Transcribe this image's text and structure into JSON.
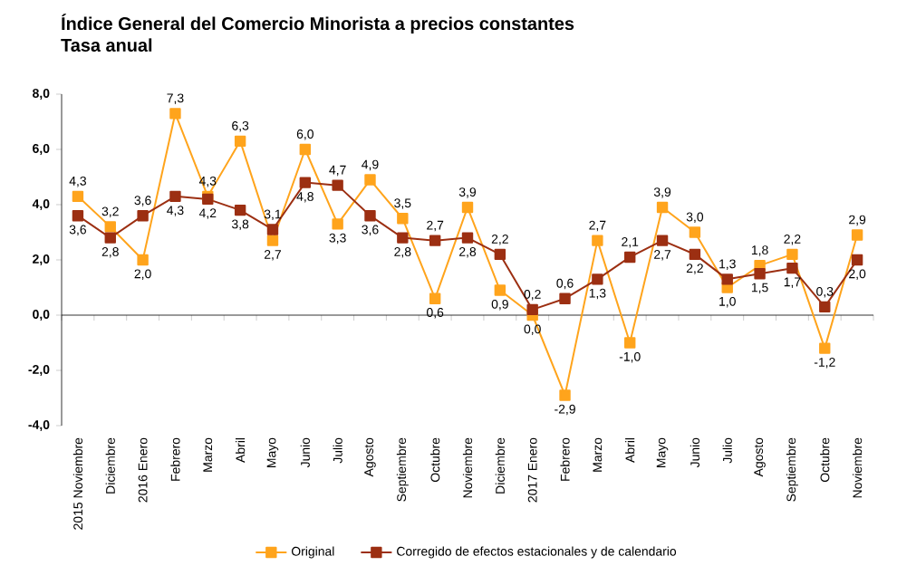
{
  "chart_data": {
    "type": "line",
    "title": "Índice General del Comercio Minorista a precios constantes",
    "subtitle": "Tasa anual",
    "categories": [
      "2015 Noviembre",
      "Diciembre",
      "2016 Enero",
      "Febrero",
      "Marzo",
      "Abril",
      "Mayo",
      "Junio",
      "Julio",
      "Agosto",
      "Septiembre",
      "Octubre",
      "Noviembre",
      "Diciembre",
      "2017 Enero",
      "Febrero",
      "Marzo",
      "Abril",
      "Mayo",
      "Junio",
      "Julio",
      "Agosto",
      "Septiembre",
      "Octubre",
      "Noviembre"
    ],
    "series": [
      {
        "name": "Original",
        "color": "#ffa41c",
        "values": [
          4.3,
          3.2,
          2.0,
          7.3,
          4.3,
          6.3,
          2.7,
          6.0,
          3.3,
          4.9,
          3.5,
          0.6,
          3.9,
          0.9,
          0.0,
          -2.9,
          2.7,
          -1.0,
          3.9,
          3.0,
          1.0,
          1.8,
          2.2,
          -1.2,
          2.9
        ],
        "value_labels": [
          "4,3",
          "3,2",
          "2,0",
          "7,3",
          "4,3",
          "6,3",
          "2,7",
          "6,0",
          "3,3",
          "4,9",
          "3,5",
          "0,6",
          "3,9",
          "0,9",
          "0,0",
          "-2,9",
          "2,7",
          "-1,0",
          "3,9",
          "3,0",
          "1,0",
          "1,8",
          "2,2",
          "-1,2",
          "2,9"
        ]
      },
      {
        "name": "Corregido de efectos estacionales y de calendario",
        "color": "#9c2f12",
        "values": [
          3.6,
          2.8,
          3.6,
          4.3,
          4.2,
          3.8,
          3.1,
          4.8,
          4.7,
          3.6,
          2.8,
          2.7,
          2.8,
          2.2,
          0.2,
          0.6,
          1.3,
          2.1,
          2.7,
          2.2,
          1.3,
          1.5,
          1.7,
          0.3,
          2.0
        ],
        "value_labels": [
          "3,6",
          "2,8",
          "3,6",
          "4,3",
          "4,2",
          "3,8",
          "3,1",
          "4,8",
          "4,7",
          "3,6",
          "2,8",
          "2,7",
          "2,8",
          "2,2",
          "0,2",
          "0,6",
          "1,3",
          "2,1",
          "2,7",
          "2,2",
          "1,3",
          "1,5",
          "1,7",
          "0,3",
          "2,0"
        ]
      }
    ],
    "ylim": [
      -4,
      8
    ],
    "yticks": [
      {
        "value": -4,
        "label": "-4,0"
      },
      {
        "value": -2,
        "label": "-2,0"
      },
      {
        "value": 0,
        "label": "0,0"
      },
      {
        "value": 2,
        "label": "2,0"
      },
      {
        "value": 4,
        "label": "4,0"
      },
      {
        "value": 6,
        "label": "6,0"
      },
      {
        "value": 8,
        "label": "8,0"
      }
    ],
    "marker": "square",
    "legend": "bottom"
  }
}
